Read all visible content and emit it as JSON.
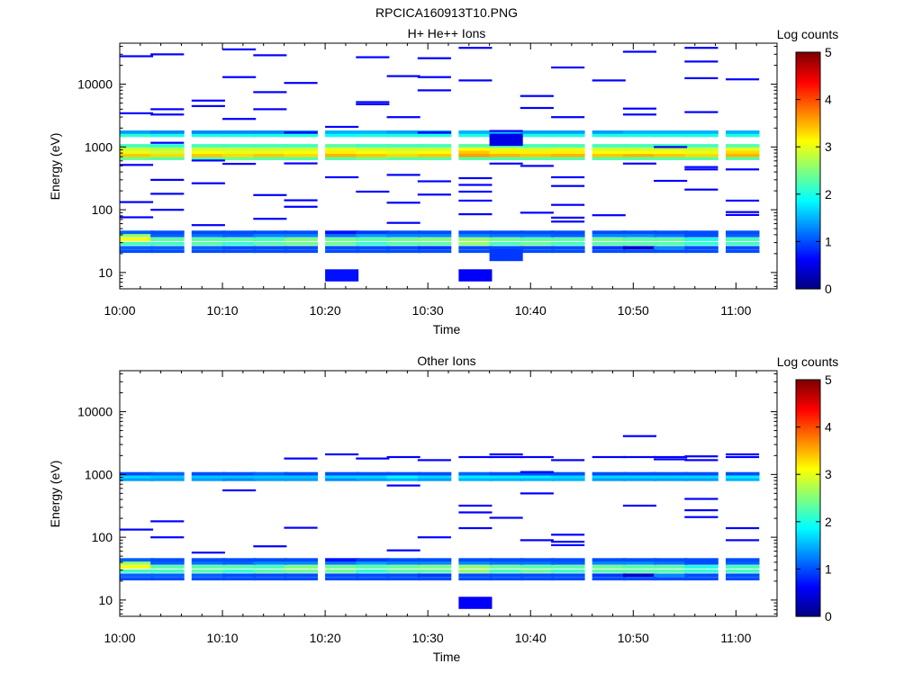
{
  "figure_title": "RPCICA160913T10.PNG",
  "colormap": [
    "#00007f",
    "#0000ff",
    "#007fff",
    "#00ffff",
    "#7fff7f",
    "#ffff00",
    "#ff7f00",
    "#ff0000",
    "#7f0000"
  ],
  "chart_data": [
    {
      "type": "heatmap",
      "title": "H+ He++ Ions",
      "xlabel": "Time",
      "ylabel": "Energy (eV)",
      "yscale": "log",
      "xlim": [
        "10:00",
        "11:04"
      ],
      "ylim": [
        5.5,
        45000
      ],
      "xticks": [
        "10:00",
        "10:10",
        "10:20",
        "10:30",
        "10:40",
        "10:50",
        "11:00"
      ],
      "yticks": [
        "10",
        "100",
        "1000",
        "10000"
      ],
      "colorbar": {
        "label": "Log counts",
        "range": [
          0,
          5
        ],
        "ticks": [
          "0",
          "1",
          "2",
          "3",
          "4",
          "5"
        ]
      },
      "time_bins": [
        "10:00",
        "10:03",
        "10:07",
        "10:10",
        "10:13",
        "10:16",
        "10:20",
        "10:23",
        "10:26",
        "10:29",
        "10:33",
        "10:36",
        "10:39",
        "10:42",
        "10:46",
        "10:49",
        "10:52",
        "10:55",
        "10:59"
      ],
      "bin_minutes": 3.25,
      "bands": [
        {
          "e": 22,
          "v": [
            1.0,
            1.0,
            1.0,
            1.0,
            1.0,
            1.0,
            1.0,
            1.0,
            1.0,
            1.0,
            1.0,
            1.0,
            1.0,
            1.0,
            1.0,
            1.0,
            1.0,
            1.0,
            1.0
          ]
        },
        {
          "e": 25,
          "v": [
            1.1,
            1.1,
            1.1,
            1.0,
            1.0,
            1.0,
            1.0,
            1.0,
            1.0,
            0.9,
            1.0,
            1.0,
            1.0,
            1.0,
            0.9,
            0.4,
            1.3,
            1.0,
            1.0
          ]
        },
        {
          "e": 29,
          "v": [
            2.2,
            2.2,
            2.3,
            2.1,
            2.3,
            2.4,
            2.4,
            2.1,
            2.3,
            2.3,
            2.6,
            2.2,
            2.4,
            2.2,
            2.3,
            2.3,
            2.3,
            2.1,
            2.2
          ]
        },
        {
          "e": 34,
          "v": [
            3.1,
            2.3,
            2.3,
            2.3,
            2.2,
            2.5,
            2.4,
            2.3,
            2.4,
            2.5,
            2.6,
            2.4,
            2.3,
            2.3,
            2.4,
            2.3,
            2.3,
            2.0,
            2.2
          ]
        },
        {
          "e": 39,
          "v": [
            2.6,
            1.1,
            1.2,
            1.1,
            1.3,
            1.3,
            1.2,
            1.4,
            1.3,
            1.3,
            1.3,
            1.2,
            1.2,
            1.1,
            1.3,
            1.3,
            1.2,
            1.0,
            1.1
          ]
        },
        {
          "e": 44,
          "v": [
            1.1,
            1.0,
            1.0,
            1.0,
            1.0,
            1.0,
            0.7,
            0.9,
            1.0,
            1.0,
            1.0,
            1.0,
            1.0,
            1.0,
            1.0,
            1.0,
            1.0,
            1.0,
            1.0
          ]
        },
        {
          "e": 660,
          "v": [
            2.4,
            2.3,
            2.3,
            2.4,
            2.3,
            2.3,
            2.3,
            2.4,
            2.3,
            2.3,
            2.3,
            2.3,
            2.3,
            2.3,
            2.3,
            2.3,
            2.3,
            2.3,
            2.3
          ]
        },
        {
          "e": 740,
          "v": [
            3.4,
            3.3,
            3.4,
            3.3,
            3.4,
            3.3,
            3.5,
            3.4,
            3.3,
            3.4,
            3.6,
            3.5,
            3.4,
            3.5,
            3.4,
            3.5,
            3.4,
            3.3,
            3.5
          ]
        },
        {
          "e": 830,
          "v": [
            3.0,
            2.9,
            3.1,
            3.0,
            3.0,
            3.1,
            3.2,
            3.1,
            3.0,
            3.1,
            3.4,
            3.2,
            3.2,
            3.2,
            3.1,
            3.1,
            3.1,
            3.0,
            3.3
          ]
        },
        {
          "e": 930,
          "v": [
            2.9,
            2.8,
            2.9,
            2.9,
            2.9,
            2.9,
            3.0,
            2.9,
            2.9,
            2.9,
            3.1,
            3.0,
            2.9,
            3.0,
            2.9,
            2.9,
            2.9,
            2.9,
            3.0
          ]
        },
        {
          "e": 1050,
          "v": [
            2.2,
            2.1,
            2.2,
            2.2,
            2.2,
            2.2,
            2.3,
            2.2,
            2.2,
            2.2,
            2.3,
            2.2,
            2.2,
            2.2,
            2.2,
            2.2,
            2.2,
            2.2,
            2.3
          ]
        },
        {
          "e": 1540,
          "v": [
            2.1,
            2.0,
            2.0,
            2.0,
            2.0,
            2.0,
            1.9,
            2.0,
            2.0,
            2.0,
            2.0,
            2.0,
            2.0,
            2.0,
            2.0,
            2.0,
            2.0,
            2.0,
            2.0
          ]
        },
        {
          "e": 1730,
          "v": [
            1.4,
            1.3,
            1.3,
            1.3,
            1.3,
            1.3,
            1.5,
            1.5,
            1.4,
            1.4,
            1.5,
            1.6,
            1.4,
            1.4,
            1.4,
            1.5,
            1.5,
            1.5,
            1.5
          ]
        }
      ],
      "blocks": [
        {
          "bin": 6,
          "e": 9,
          "v": 0.7
        },
        {
          "bin": 10,
          "e": 9,
          "v": 0.6
        },
        {
          "bin": 11,
          "e": 19,
          "v": 0.9
        },
        {
          "bin": 11,
          "e": 1300,
          "v": 0.5
        }
      ],
      "sparse": [
        [
          0,
          133
        ],
        [
          0,
          76
        ],
        [
          0,
          520
        ],
        [
          0,
          3450
        ],
        [
          0,
          28000
        ],
        [
          1,
          100
        ],
        [
          1,
          180
        ],
        [
          1,
          300
        ],
        [
          1,
          1170
        ],
        [
          1,
          4000
        ],
        [
          1,
          3300
        ],
        [
          1,
          30000
        ],
        [
          2,
          57
        ],
        [
          2,
          265
        ],
        [
          2,
          610
        ],
        [
          2,
          4500
        ],
        [
          2,
          5500
        ],
        [
          3,
          540
        ],
        [
          3,
          2800
        ],
        [
          3,
          13000
        ],
        [
          3,
          36000
        ],
        [
          4,
          72
        ],
        [
          4,
          172
        ],
        [
          4,
          4000
        ],
        [
          4,
          7500
        ],
        [
          4,
          29000
        ],
        [
          5,
          112
        ],
        [
          5,
          142
        ],
        [
          5,
          550
        ],
        [
          5,
          1700
        ],
        [
          5,
          10500
        ],
        [
          6,
          330
        ],
        [
          6,
          2100
        ],
        [
          7,
          195
        ],
        [
          7,
          4800
        ],
        [
          7,
          5200
        ],
        [
          7,
          27000
        ],
        [
          8,
          62
        ],
        [
          8,
          130
        ],
        [
          8,
          360
        ],
        [
          8,
          3000
        ],
        [
          8,
          13500
        ],
        [
          9,
          175
        ],
        [
          9,
          285
        ],
        [
          9,
          1700
        ],
        [
          9,
          8000
        ],
        [
          9,
          13000
        ],
        [
          9,
          26000
        ],
        [
          10,
          85
        ],
        [
          10,
          140
        ],
        [
          10,
          195
        ],
        [
          10,
          250
        ],
        [
          10,
          320
        ],
        [
          10,
          11500
        ],
        [
          10,
          38000
        ],
        [
          11,
          545
        ],
        [
          11,
          1800
        ],
        [
          12,
          90
        ],
        [
          12,
          500
        ],
        [
          12,
          4200
        ],
        [
          12,
          6500
        ],
        [
          13,
          65
        ],
        [
          13,
          75
        ],
        [
          13,
          120
        ],
        [
          13,
          240
        ],
        [
          13,
          330
        ],
        [
          13,
          3000
        ],
        [
          13,
          18500
        ],
        [
          14,
          82
        ],
        [
          14,
          11500
        ],
        [
          15,
          545
        ],
        [
          15,
          3300
        ],
        [
          15,
          4100
        ],
        [
          15,
          33000
        ],
        [
          16,
          290
        ],
        [
          16,
          1000
        ],
        [
          17,
          210
        ],
        [
          17,
          440
        ],
        [
          17,
          480
        ],
        [
          17,
          3600
        ],
        [
          17,
          12500
        ],
        [
          17,
          23000
        ],
        [
          17,
          38000
        ],
        [
          18,
          83
        ],
        [
          18,
          92
        ],
        [
          18,
          140
        ],
        [
          18,
          440
        ],
        [
          18,
          12000
        ]
      ]
    },
    {
      "type": "heatmap",
      "title": "Other Ions",
      "xlabel": "Time",
      "ylabel": "Energy (eV)",
      "yscale": "log",
      "xlim": [
        "10:00",
        "11:04"
      ],
      "ylim": [
        5.5,
        45000
      ],
      "xticks": [
        "10:00",
        "10:10",
        "10:20",
        "10:30",
        "10:40",
        "10:50",
        "11:00"
      ],
      "yticks": [
        "10",
        "100",
        "1000",
        "10000"
      ],
      "colorbar": {
        "label": "Log counts",
        "range": [
          0,
          5
        ],
        "ticks": [
          "0",
          "1",
          "2",
          "3",
          "4",
          "5"
        ]
      },
      "time_bins": [
        "10:00",
        "10:03",
        "10:07",
        "10:10",
        "10:13",
        "10:16",
        "10:20",
        "10:23",
        "10:26",
        "10:29",
        "10:33",
        "10:36",
        "10:39",
        "10:42",
        "10:46",
        "10:49",
        "10:52",
        "10:55",
        "10:59"
      ],
      "bin_minutes": 3.25,
      "bands": [
        {
          "e": 22,
          "v": [
            1.0,
            1.0,
            1.0,
            1.0,
            1.0,
            1.0,
            1.0,
            1.0,
            1.0,
            1.0,
            1.0,
            1.0,
            1.0,
            1.0,
            1.0,
            1.0,
            1.0,
            1.0,
            1.0
          ]
        },
        {
          "e": 25,
          "v": [
            1.1,
            1.1,
            1.1,
            1.0,
            1.0,
            1.0,
            1.0,
            1.0,
            1.0,
            0.9,
            1.0,
            1.0,
            1.0,
            1.0,
            0.9,
            0.4,
            1.3,
            1.0,
            1.0
          ]
        },
        {
          "e": 29,
          "v": [
            2.2,
            2.2,
            2.3,
            2.1,
            2.3,
            2.4,
            2.4,
            2.1,
            2.3,
            2.3,
            2.6,
            2.2,
            2.4,
            2.2,
            2.3,
            2.3,
            2.3,
            2.1,
            2.2
          ]
        },
        {
          "e": 34,
          "v": [
            3.1,
            2.3,
            2.3,
            2.3,
            2.2,
            2.5,
            2.4,
            2.3,
            2.4,
            2.5,
            2.6,
            2.4,
            2.3,
            2.3,
            2.4,
            2.3,
            2.3,
            2.0,
            2.2
          ]
        },
        {
          "e": 39,
          "v": [
            2.6,
            1.1,
            1.2,
            1.1,
            1.3,
            1.3,
            1.2,
            1.4,
            1.3,
            1.3,
            1.3,
            1.2,
            1.2,
            1.1,
            1.3,
            1.3,
            1.2,
            1.0,
            1.1
          ]
        },
        {
          "e": 44,
          "v": [
            1.1,
            1.0,
            1.0,
            1.0,
            1.0,
            1.0,
            0.7,
            0.9,
            1.0,
            1.0,
            1.0,
            1.0,
            1.0,
            1.0,
            1.0,
            1.0,
            1.0,
            1.0,
            1.0
          ]
        },
        {
          "e": 840,
          "v": [
            1.4,
            1.4,
            1.4,
            1.3,
            1.4,
            1.4,
            1.3,
            1.4,
            1.5,
            1.4,
            1.5,
            1.5,
            1.5,
            1.5,
            1.4,
            1.4,
            1.4,
            1.4,
            1.5
          ]
        },
        {
          "e": 930,
          "v": [
            1.7,
            1.6,
            1.6,
            1.6,
            1.6,
            1.6,
            1.7,
            1.7,
            1.9,
            1.7,
            1.8,
            1.8,
            1.8,
            1.7,
            1.7,
            1.7,
            1.7,
            1.7,
            1.8
          ]
        },
        {
          "e": 1030,
          "v": [
            1.0,
            1.1,
            1.0,
            1.0,
            1.1,
            1.0,
            1.0,
            1.0,
            1.0,
            1.0,
            1.1,
            1.0,
            1.0,
            1.0,
            1.0,
            1.0,
            1.0,
            1.0,
            1.0
          ]
        }
      ],
      "blocks": [
        {
          "bin": 10,
          "e": 9,
          "v": 0.6
        }
      ],
      "sparse": [
        [
          0,
          133
        ],
        [
          1,
          100
        ],
        [
          1,
          180
        ],
        [
          2,
          57
        ],
        [
          3,
          560
        ],
        [
          4,
          72
        ],
        [
          5,
          142
        ],
        [
          5,
          1800
        ],
        [
          6,
          2100
        ],
        [
          7,
          1800
        ],
        [
          8,
          62
        ],
        [
          8,
          670
        ],
        [
          8,
          1900
        ],
        [
          9,
          100
        ],
        [
          9,
          1700
        ],
        [
          10,
          140
        ],
        [
          10,
          250
        ],
        [
          10,
          320
        ],
        [
          10,
          1900
        ],
        [
          11,
          205
        ],
        [
          11,
          1900
        ],
        [
          11,
          2100
        ],
        [
          12,
          90
        ],
        [
          12,
          500
        ],
        [
          12,
          1900
        ],
        [
          12,
          1100
        ],
        [
          13,
          75
        ],
        [
          13,
          85
        ],
        [
          13,
          110
        ],
        [
          13,
          1700
        ],
        [
          14,
          1900
        ],
        [
          15,
          320
        ],
        [
          15,
          1900
        ],
        [
          15,
          4100
        ],
        [
          16,
          1900
        ],
        [
          16,
          1750
        ],
        [
          17,
          210
        ],
        [
          17,
          270
        ],
        [
          17,
          410
        ],
        [
          17,
          1700
        ],
        [
          17,
          1950
        ],
        [
          18,
          90
        ],
        [
          18,
          140
        ],
        [
          18,
          1900
        ],
        [
          18,
          2100
        ]
      ]
    }
  ]
}
